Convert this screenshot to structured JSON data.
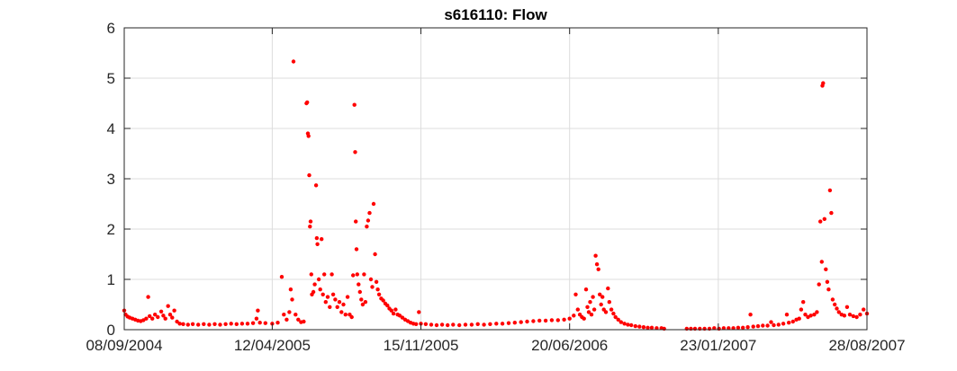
{
  "chart_data": {
    "type": "scatter",
    "title": "s616110: Flow",
    "xlabel": "",
    "ylabel": "",
    "x_axis": "date",
    "xlim": [
      "2004-09-08",
      "2007-08-28"
    ],
    "ylim": [
      0,
      6
    ],
    "xticks": [
      "2004-09-08",
      "2005-04-12",
      "2005-11-15",
      "2006-06-20",
      "2007-01-23",
      "2007-08-28"
    ],
    "xtick_labels": [
      "08/09/2004",
      "12/04/2005",
      "15/11/2005",
      "20/06/2006",
      "23/01/2007",
      "28/08/2007"
    ],
    "yticks": [
      0,
      1,
      2,
      3,
      4,
      5,
      6
    ],
    "ytick_labels": [
      "0",
      "1",
      "2",
      "3",
      "4",
      "5",
      "6"
    ],
    "grid": true,
    "legend": "none",
    "marker_color": "#ff0000",
    "series": [
      {
        "points": [
          [
            "2004-09-08",
            0.38
          ],
          [
            "2004-09-10",
            0.3
          ],
          [
            "2004-09-13",
            0.26
          ],
          [
            "2004-09-16",
            0.24
          ],
          [
            "2004-09-20",
            0.22
          ],
          [
            "2004-09-24",
            0.2
          ],
          [
            "2004-09-28",
            0.18
          ],
          [
            "2004-10-02",
            0.17
          ],
          [
            "2004-10-06",
            0.19
          ],
          [
            "2004-10-10",
            0.22
          ],
          [
            "2004-10-13",
            0.65
          ],
          [
            "2004-10-15",
            0.27
          ],
          [
            "2004-10-19",
            0.22
          ],
          [
            "2004-10-23",
            0.3
          ],
          [
            "2004-10-27",
            0.25
          ],
          [
            "2004-11-01",
            0.36
          ],
          [
            "2004-11-04",
            0.28
          ],
          [
            "2004-11-07",
            0.22
          ],
          [
            "2004-11-11",
            0.47
          ],
          [
            "2004-11-14",
            0.3
          ],
          [
            "2004-11-17",
            0.24
          ],
          [
            "2004-11-20",
            0.38
          ],
          [
            "2004-11-24",
            0.16
          ],
          [
            "2004-11-28",
            0.12
          ],
          [
            "2004-12-03",
            0.11
          ],
          [
            "2004-12-10",
            0.1
          ],
          [
            "2004-12-17",
            0.11
          ],
          [
            "2004-12-25",
            0.1
          ],
          [
            "2005-01-02",
            0.11
          ],
          [
            "2005-01-10",
            0.1
          ],
          [
            "2005-01-18",
            0.11
          ],
          [
            "2005-01-26",
            0.1
          ],
          [
            "2005-02-03",
            0.11
          ],
          [
            "2005-02-11",
            0.12
          ],
          [
            "2005-02-19",
            0.11
          ],
          [
            "2005-02-27",
            0.12
          ],
          [
            "2005-03-07",
            0.12
          ],
          [
            "2005-03-15",
            0.13
          ],
          [
            "2005-03-20",
            0.22
          ],
          [
            "2005-03-22",
            0.38
          ],
          [
            "2005-03-25",
            0.14
          ],
          [
            "2005-04-02",
            0.13
          ],
          [
            "2005-04-12",
            0.12
          ],
          [
            "2005-04-20",
            0.14
          ],
          [
            "2005-04-26",
            1.05
          ],
          [
            "2005-04-29",
            0.3
          ],
          [
            "2005-05-03",
            0.2
          ],
          [
            "2005-05-07",
            0.35
          ],
          [
            "2005-05-09",
            0.8
          ],
          [
            "2005-05-11",
            0.6
          ],
          [
            "2005-05-13",
            5.33
          ],
          [
            "2005-05-16",
            0.3
          ],
          [
            "2005-05-20",
            0.2
          ],
          [
            "2005-05-24",
            0.15
          ],
          [
            "2005-05-28",
            0.16
          ],
          [
            "2005-06-01",
            4.5
          ],
          [
            "2005-06-02",
            4.52
          ],
          [
            "2005-06-03",
            3.9
          ],
          [
            "2005-06-04",
            3.85
          ],
          [
            "2005-06-05",
            3.07
          ],
          [
            "2005-06-06",
            2.05
          ],
          [
            "2005-06-07",
            2.15
          ],
          [
            "2005-06-08",
            1.1
          ],
          [
            "2005-06-09",
            0.7
          ],
          [
            "2005-06-11",
            0.75
          ],
          [
            "2005-06-13",
            0.9
          ],
          [
            "2005-06-15",
            2.87
          ],
          [
            "2005-06-16",
            1.82
          ],
          [
            "2005-06-17",
            1.7
          ],
          [
            "2005-06-19",
            1.0
          ],
          [
            "2005-06-21",
            0.8
          ],
          [
            "2005-06-23",
            1.8
          ],
          [
            "2005-06-25",
            0.7
          ],
          [
            "2005-06-27",
            1.1
          ],
          [
            "2005-06-29",
            0.55
          ],
          [
            "2005-07-02",
            0.65
          ],
          [
            "2005-07-05",
            0.45
          ],
          [
            "2005-07-08",
            1.1
          ],
          [
            "2005-07-10",
            0.7
          ],
          [
            "2005-07-13",
            0.6
          ],
          [
            "2005-07-16",
            0.45
          ],
          [
            "2005-07-19",
            0.55
          ],
          [
            "2005-07-22",
            0.35
          ],
          [
            "2005-07-25",
            0.5
          ],
          [
            "2005-07-28",
            0.3
          ],
          [
            "2005-07-31",
            0.65
          ],
          [
            "2005-08-03",
            0.3
          ],
          [
            "2005-08-06",
            0.25
          ],
          [
            "2005-08-08",
            1.08
          ],
          [
            "2005-08-10",
            4.47
          ],
          [
            "2005-08-11",
            3.53
          ],
          [
            "2005-08-12",
            2.15
          ],
          [
            "2005-08-13",
            1.6
          ],
          [
            "2005-08-14",
            1.1
          ],
          [
            "2005-08-16",
            0.9
          ],
          [
            "2005-08-18",
            0.75
          ],
          [
            "2005-08-20",
            0.6
          ],
          [
            "2005-08-22",
            0.5
          ],
          [
            "2005-08-24",
            1.1
          ],
          [
            "2005-08-26",
            0.55
          ],
          [
            "2005-08-28",
            2.05
          ],
          [
            "2005-08-30",
            2.17
          ],
          [
            "2005-09-01",
            2.32
          ],
          [
            "2005-09-03",
            1.0
          ],
          [
            "2005-09-05",
            0.85
          ],
          [
            "2005-09-07",
            2.5
          ],
          [
            "2005-09-09",
            1.5
          ],
          [
            "2005-09-11",
            0.95
          ],
          [
            "2005-09-13",
            0.8
          ],
          [
            "2005-09-15",
            0.7
          ],
          [
            "2005-09-18",
            0.62
          ],
          [
            "2005-09-21",
            0.58
          ],
          [
            "2005-09-24",
            0.52
          ],
          [
            "2005-09-27",
            0.48
          ],
          [
            "2005-09-30",
            0.42
          ],
          [
            "2005-10-03",
            0.38
          ],
          [
            "2005-10-06",
            0.32
          ],
          [
            "2005-10-09",
            0.4
          ],
          [
            "2005-10-12",
            0.3
          ],
          [
            "2005-10-15",
            0.28
          ],
          [
            "2005-10-19",
            0.24
          ],
          [
            "2005-10-23",
            0.2
          ],
          [
            "2005-10-27",
            0.17
          ],
          [
            "2005-10-31",
            0.14
          ],
          [
            "2005-11-04",
            0.12
          ],
          [
            "2005-11-08",
            0.11
          ],
          [
            "2005-11-12",
            0.35
          ],
          [
            "2005-11-15",
            0.12
          ],
          [
            "2005-11-22",
            0.11
          ],
          [
            "2005-11-30",
            0.1
          ],
          [
            "2005-12-08",
            0.09
          ],
          [
            "2005-12-16",
            0.1
          ],
          [
            "2005-12-24",
            0.09
          ],
          [
            "2006-01-01",
            0.1
          ],
          [
            "2006-01-10",
            0.09
          ],
          [
            "2006-01-19",
            0.1
          ],
          [
            "2006-01-28",
            0.1
          ],
          [
            "2006-02-06",
            0.11
          ],
          [
            "2006-02-15",
            0.1
          ],
          [
            "2006-02-24",
            0.11
          ],
          [
            "2006-03-05",
            0.12
          ],
          [
            "2006-03-14",
            0.12
          ],
          [
            "2006-03-23",
            0.13
          ],
          [
            "2006-04-01",
            0.14
          ],
          [
            "2006-04-10",
            0.15
          ],
          [
            "2006-04-19",
            0.16
          ],
          [
            "2006-04-28",
            0.17
          ],
          [
            "2006-05-07",
            0.18
          ],
          [
            "2006-05-16",
            0.18
          ],
          [
            "2006-05-25",
            0.19
          ],
          [
            "2006-06-03",
            0.19
          ],
          [
            "2006-06-12",
            0.2
          ],
          [
            "2006-06-20",
            0.22
          ],
          [
            "2006-06-26",
            0.28
          ],
          [
            "2006-06-29",
            0.7
          ],
          [
            "2006-07-02",
            0.4
          ],
          [
            "2006-07-05",
            0.3
          ],
          [
            "2006-07-08",
            0.25
          ],
          [
            "2006-07-11",
            0.22
          ],
          [
            "2006-07-14",
            0.8
          ],
          [
            "2006-07-16",
            0.45
          ],
          [
            "2006-07-18",
            0.35
          ],
          [
            "2006-07-20",
            0.55
          ],
          [
            "2006-07-22",
            0.3
          ],
          [
            "2006-07-24",
            0.65
          ],
          [
            "2006-07-26",
            0.4
          ],
          [
            "2006-07-28",
            1.47
          ],
          [
            "2006-07-30",
            1.3
          ],
          [
            "2006-08-01",
            1.2
          ],
          [
            "2006-08-03",
            0.7
          ],
          [
            "2006-08-05",
            0.5
          ],
          [
            "2006-08-07",
            0.65
          ],
          [
            "2006-08-09",
            0.4
          ],
          [
            "2006-08-12",
            0.35
          ],
          [
            "2006-08-15",
            0.82
          ],
          [
            "2006-08-17",
            0.55
          ],
          [
            "2006-08-20",
            0.4
          ],
          [
            "2006-08-23",
            0.32
          ],
          [
            "2006-08-26",
            0.25
          ],
          [
            "2006-08-30",
            0.2
          ],
          [
            "2006-09-03",
            0.15
          ],
          [
            "2006-09-08",
            0.12
          ],
          [
            "2006-09-13",
            0.1
          ],
          [
            "2006-09-18",
            0.09
          ],
          [
            "2006-09-24",
            0.07
          ],
          [
            "2006-09-30",
            0.06
          ],
          [
            "2006-10-06",
            0.05
          ],
          [
            "2006-10-12",
            0.04
          ],
          [
            "2006-10-18",
            0.04
          ],
          [
            "2006-10-25",
            0.03
          ],
          [
            "2006-11-01",
            0.03
          ],
          [
            "2006-11-05",
            0.02
          ],
          [
            "2006-12-08",
            0.02
          ],
          [
            "2006-12-14",
            0.02
          ],
          [
            "2006-12-20",
            0.02
          ],
          [
            "2006-12-27",
            0.02
          ],
          [
            "2007-01-03",
            0.02
          ],
          [
            "2007-01-10",
            0.02
          ],
          [
            "2007-01-17",
            0.03
          ],
          [
            "2007-01-24",
            0.02
          ],
          [
            "2007-01-31",
            0.03
          ],
          [
            "2007-02-07",
            0.03
          ],
          [
            "2007-02-14",
            0.03
          ],
          [
            "2007-02-21",
            0.04
          ],
          [
            "2007-02-28",
            0.04
          ],
          [
            "2007-03-07",
            0.05
          ],
          [
            "2007-03-11",
            0.3
          ],
          [
            "2007-03-15",
            0.06
          ],
          [
            "2007-03-22",
            0.07
          ],
          [
            "2007-03-29",
            0.08
          ],
          [
            "2007-04-05",
            0.08
          ],
          [
            "2007-04-10",
            0.15
          ],
          [
            "2007-04-14",
            0.09
          ],
          [
            "2007-04-21",
            0.1
          ],
          [
            "2007-04-28",
            0.12
          ],
          [
            "2007-05-03",
            0.3
          ],
          [
            "2007-05-06",
            0.14
          ],
          [
            "2007-05-12",
            0.16
          ],
          [
            "2007-05-17",
            0.2
          ],
          [
            "2007-05-21",
            0.22
          ],
          [
            "2007-05-24",
            0.4
          ],
          [
            "2007-05-27",
            0.55
          ],
          [
            "2007-05-30",
            0.3
          ],
          [
            "2007-06-03",
            0.25
          ],
          [
            "2007-06-07",
            0.28
          ],
          [
            "2007-06-12",
            0.3
          ],
          [
            "2007-06-16",
            0.35
          ],
          [
            "2007-06-19",
            0.9
          ],
          [
            "2007-06-21",
            2.15
          ],
          [
            "2007-06-23",
            1.35
          ],
          [
            "2007-06-24",
            4.85
          ],
          [
            "2007-06-25",
            4.9
          ],
          [
            "2007-06-27",
            2.2
          ],
          [
            "2007-06-29",
            1.2
          ],
          [
            "2007-07-01",
            0.95
          ],
          [
            "2007-07-03",
            0.8
          ],
          [
            "2007-07-05",
            2.77
          ],
          [
            "2007-07-07",
            2.32
          ],
          [
            "2007-07-09",
            0.6
          ],
          [
            "2007-07-12",
            0.5
          ],
          [
            "2007-07-15",
            0.42
          ],
          [
            "2007-07-18",
            0.35
          ],
          [
            "2007-07-22",
            0.3
          ],
          [
            "2007-07-26",
            0.28
          ],
          [
            "2007-07-30",
            0.45
          ],
          [
            "2007-08-03",
            0.3
          ],
          [
            "2007-08-08",
            0.27
          ],
          [
            "2007-08-13",
            0.25
          ],
          [
            "2007-08-18",
            0.3
          ],
          [
            "2007-08-23",
            0.4
          ],
          [
            "2007-08-28",
            0.32
          ]
        ]
      }
    ]
  }
}
